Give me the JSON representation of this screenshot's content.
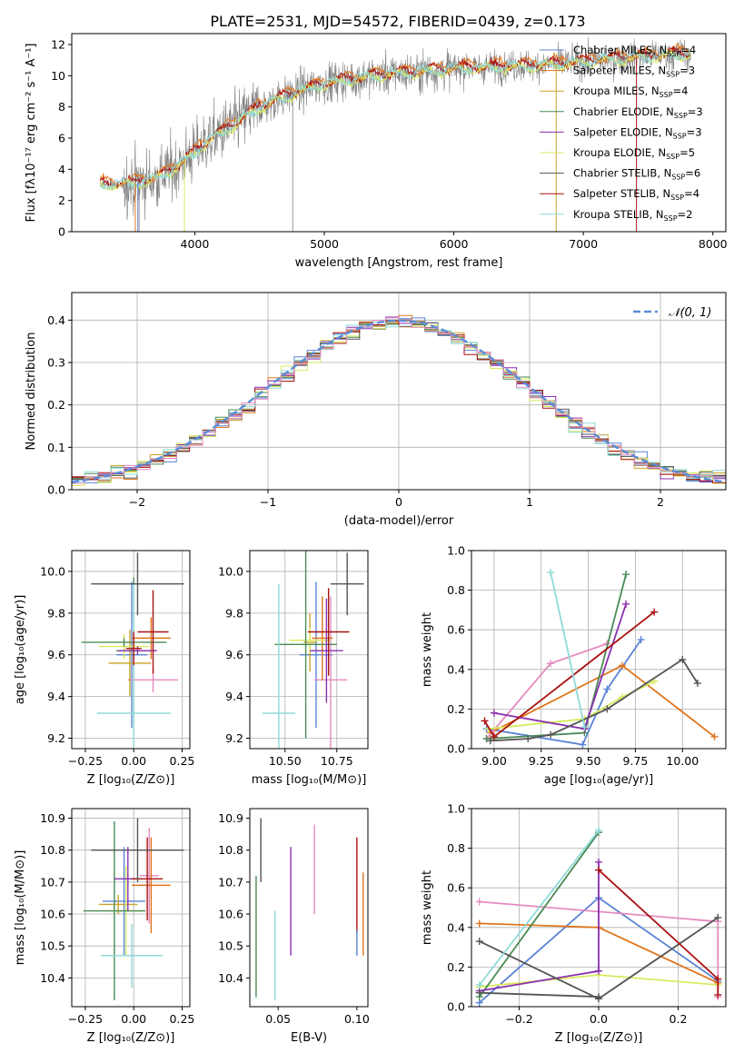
{
  "figure_title": "PLATE=2531, MJD=54572, FIBERID=0439, z=0.173",
  "colors": {
    "chabrier_miles": "#5b84d6",
    "salpeter_miles": "#e0751c",
    "kroupa_miles": "#c9a227",
    "chabrier_elodie": "#4a8a55",
    "salpeter_elodie": "#8b2fb0",
    "kroupa_elodie": "#d9ea5f",
    "chabrier_stelib": "#555555",
    "salpeter_stelib": "#aa1111",
    "kroupa_stelib": "#8fdad8",
    "pink": "#e58abf",
    "gray_data": "#808080",
    "normal_curve": "#5b8cd6"
  },
  "chart_data": [
    {
      "type": "line",
      "id": "spectrum",
      "xlabel": "wavelength [Angstrom, rest frame]",
      "ylabel": "Flux [fλ10⁻¹⁷ erg cm⁻² s⁻¹ A⁻¹]",
      "xlim": [
        3050,
        8100
      ],
      "ylim": [
        0,
        12.7
      ],
      "xticks": [
        4000,
        5000,
        6000,
        7000,
        8000
      ],
      "yticks": [
        0,
        2,
        4,
        6,
        8,
        10,
        12
      ],
      "grid": false,
      "continuum_points": [
        [
          3270,
          3.0
        ],
        [
          3500,
          3.1
        ],
        [
          3700,
          3.4
        ],
        [
          3900,
          4.4
        ],
        [
          4100,
          5.8
        ],
        [
          4300,
          6.9
        ],
        [
          4500,
          8.0
        ],
        [
          4800,
          9.0
        ],
        [
          5000,
          9.5
        ],
        [
          5200,
          9.8
        ],
        [
          5500,
          10.1
        ],
        [
          5800,
          10.3
        ],
        [
          6100,
          10.5
        ],
        [
          6400,
          10.6
        ],
        [
          6700,
          10.7
        ],
        [
          7000,
          10.9
        ],
        [
          7400,
          11.2
        ],
        [
          7800,
          11.4
        ]
      ],
      "legend_location": "upper right",
      "legend": [
        {
          "label": "Chabrier MILES, N_SSP=4",
          "color": "chabrier_miles"
        },
        {
          "label": "Salpeter MILES, N_SSP=3",
          "color": "salpeter_miles"
        },
        {
          "label": "Kroupa MILES, N_SSP=4",
          "color": "kroupa_miles"
        },
        {
          "label": "Chabrier ELODIE, N_SSP=3",
          "color": "chabrier_elodie"
        },
        {
          "label": "Salpeter ELODIE, N_SSP=3",
          "color": "salpeter_elodie"
        },
        {
          "label": "Kroupa ELODIE, N_SSP=5",
          "color": "kroupa_elodie"
        },
        {
          "label": "Chabrier STELIB, N_SSP=6",
          "color": "chabrier_stelib"
        },
        {
          "label": "Salpeter STELIB, N_SSP=4",
          "color": "salpeter_stelib"
        },
        {
          "label": "Kroupa STELIB, N_SSP=2",
          "color": "kroupa_stelib"
        }
      ],
      "legend_text": [
        {
          "pre": "Chabrier MILES, N",
          "sub": "SSP",
          "post": "=4"
        },
        {
          "pre": "Salpeter MILES, N",
          "sub": "SSP",
          "post": "=3"
        },
        {
          "pre": "Kroupa MILES, N",
          "sub": "SSP",
          "post": "=4"
        },
        {
          "pre": "Chabrier ELODIE, N",
          "sub": "SSP",
          "post": "=3"
        },
        {
          "pre": "Salpeter ELODIE, N",
          "sub": "SSP",
          "post": "=3"
        },
        {
          "pre": "Kroupa ELODIE, N",
          "sub": "SSP",
          "post": "=5"
        },
        {
          "pre": "Chabrier STELIB, N",
          "sub": "SSP",
          "post": "=6"
        },
        {
          "pre": "Salpeter STELIB, N",
          "sub": "SSP",
          "post": "=4"
        },
        {
          "pre": "Kroupa STELIB, N",
          "sub": "SSP",
          "post": "=2"
        }
      ]
    },
    {
      "type": "bar",
      "id": "residuals",
      "xlabel": "(data-model)/error",
      "ylabel": "Normed distribution",
      "xlim": [
        -2.5,
        2.5
      ],
      "ylim": [
        0,
        0.465
      ],
      "xticks": [
        -2,
        -1,
        0,
        1,
        2
      ],
      "yticks": [
        0.0,
        0.1,
        0.2,
        0.3,
        0.4
      ],
      "grid": true,
      "bin_width": 0.1,
      "legend": [
        {
          "label": "𝒩(0, 1)",
          "color": "normal_curve"
        }
      ],
      "legend_location": "upper right"
    },
    {
      "type": "scatter",
      "id": "age_vs_Z",
      "xlabel": "Z [log₁₀(Z/Z⊙)]",
      "ylabel": "age  [log₁₀(age/yr)]",
      "xlim": [
        -0.32,
        0.29
      ],
      "ylim": [
        9.15,
        10.1
      ],
      "xticks": [
        -0.25,
        0.0,
        0.25
      ],
      "yticks": [
        9.2,
        9.4,
        9.6,
        9.8,
        10.0
      ],
      "grid": true,
      "points": [
        {
          "x": -0.01,
          "y": 9.6,
          "xerr": 0.08,
          "yerr": 0.35,
          "color": "chabrier_miles"
        },
        {
          "x": 0.1,
          "y": 9.48,
          "xerr": 0.13,
          "yerr": 0.06,
          "color": "pink"
        },
        {
          "x": 0.09,
          "y": 9.68,
          "xerr": 0.1,
          "yerr": 0.1,
          "color": "salpeter_miles"
        },
        {
          "x": -0.02,
          "y": 9.56,
          "xerr": 0.11,
          "yerr": 0.16,
          "color": "kroupa_miles"
        },
        {
          "x": -0.05,
          "y": 9.64,
          "xerr": 0.13,
          "yerr": 0.06,
          "color": "kroupa_elodie"
        },
        {
          "x": -0.05,
          "y": 9.66,
          "xerr": 0.22,
          "yerr": 0.02,
          "color": "chabrier_elodie"
        },
        {
          "x": 0.0,
          "y": 9.62,
          "xerr": 0.09,
          "yerr": 0.35,
          "color": "chabrier_elodie"
        },
        {
          "x": 0.02,
          "y": 9.62,
          "xerr": 0.1,
          "yerr": 0.02,
          "color": "salpeter_elodie"
        },
        {
          "x": 0.0,
          "y": 9.32,
          "xerr": 0.19,
          "yerr": 0.62,
          "color": "kroupa_stelib"
        },
        {
          "x": 0.1,
          "y": 9.71,
          "xerr": 0.08,
          "yerr": 0.2,
          "color": "salpeter_stelib"
        },
        {
          "x": 0.02,
          "y": 9.94,
          "xerr": 0.24,
          "yerr": 0.15,
          "color": "chabrier_stelib"
        },
        {
          "x": 0.0,
          "y": 9.63,
          "xerr": 0.04,
          "yerr": 0.08,
          "color": "salpeter_stelib"
        }
      ]
    },
    {
      "type": "scatter",
      "id": "age_vs_mass",
      "xlabel": "mass [log₁₀(M/M⊙)]",
      "ylabel": "",
      "xlim": [
        10.33,
        10.9
      ],
      "ylim": [
        9.15,
        10.1
      ],
      "xticks": [
        10.5,
        10.75
      ],
      "yticks": [
        9.2,
        9.4,
        9.6,
        9.8,
        10.0
      ],
      "grid": true,
      "points": [
        {
          "x": 10.65,
          "y": 9.6,
          "xerr": 0.08,
          "yerr": 0.35,
          "color": "chabrier_miles"
        },
        {
          "x": 10.72,
          "y": 9.48,
          "xerr": 0.08,
          "yerr": 0.4,
          "color": "pink"
        },
        {
          "x": 10.68,
          "y": 9.68,
          "xerr": 0.05,
          "yerr": 0.2,
          "color": "salpeter_miles"
        },
        {
          "x": 10.62,
          "y": 9.66,
          "xerr": 0.03,
          "yerr": 0.14,
          "color": "kroupa_miles"
        },
        {
          "x": 10.62,
          "y": 9.67,
          "xerr": 0.1,
          "yerr": 0.06,
          "color": "kroupa_elodie"
        },
        {
          "x": 10.6,
          "y": 9.65,
          "xerr": 0.15,
          "yerr": 0.45,
          "color": "chabrier_elodie"
        },
        {
          "x": 10.7,
          "y": 9.62,
          "xerr": 0.08,
          "yerr": 0.25,
          "color": "salpeter_elodie"
        },
        {
          "x": 10.47,
          "y": 9.32,
          "xerr": 0.08,
          "yerr": 0.62,
          "color": "kroupa_stelib"
        },
        {
          "x": 10.71,
          "y": 9.71,
          "xerr": 0.1,
          "yerr": 0.21,
          "color": "salpeter_stelib"
        },
        {
          "x": 10.8,
          "y": 9.94,
          "xerr": 0.08,
          "yerr": 0.15,
          "color": "chabrier_stelib"
        }
      ]
    },
    {
      "type": "line",
      "id": "mass_weight_vs_age",
      "xlabel": "age  [log₁₀(age/yr)]",
      "ylabel": "mass weight",
      "xlim": [
        8.88,
        10.23
      ],
      "ylim": [
        0.0,
        1.0
      ],
      "xticks": [
        9.0,
        9.25,
        9.5,
        9.75,
        10.0
      ],
      "yticks": [
        0.0,
        0.2,
        0.4,
        0.6,
        0.8,
        1.0
      ],
      "grid": true,
      "series": [
        {
          "color": "chabrier_miles",
          "x": [
            8.96,
            9.47,
            9.6,
            9.78
          ],
          "y": [
            0.1,
            0.02,
            0.3,
            0.55
          ]
        },
        {
          "color": "salpeter_miles",
          "x": [
            8.98,
            9.68,
            10.17
          ],
          "y": [
            0.08,
            0.42,
            0.06
          ]
        },
        {
          "color": "pink",
          "x": [
            8.96,
            9.3,
            9.6
          ],
          "y": [
            0.05,
            0.43,
            0.53
          ]
        },
        {
          "color": "kroupa_elodie",
          "x": [
            8.97,
            9.48,
            9.68,
            9.85
          ],
          "y": [
            0.1,
            0.15,
            0.26,
            0.34
          ]
        },
        {
          "color": "chabrier_elodie",
          "x": [
            8.96,
            9.48,
            9.7
          ],
          "y": [
            0.05,
            0.08,
            0.88
          ]
        },
        {
          "color": "salpeter_elodie",
          "x": [
            9.0,
            9.48,
            9.7
          ],
          "y": [
            0.18,
            0.1,
            0.73
          ]
        },
        {
          "color": "chabrier_stelib",
          "x": [
            8.98,
            9.18,
            9.3,
            9.6,
            10.0,
            10.08
          ],
          "y": [
            0.04,
            0.05,
            0.07,
            0.2,
            0.45,
            0.33
          ]
        },
        {
          "color": "salpeter_stelib",
          "x": [
            8.95,
            9.0,
            9.85
          ],
          "y": [
            0.14,
            0.06,
            0.69
          ]
        },
        {
          "color": "kroupa_stelib",
          "x": [
            9.3,
            9.48
          ],
          "y": [
            0.89,
            0.11
          ]
        }
      ]
    },
    {
      "type": "scatter",
      "id": "mass_vs_Z",
      "xlabel": "Z [log₁₀(Z/Z⊙)]",
      "ylabel": "mass [log₁₀(M/M⊙)]",
      "xlim": [
        -0.32,
        0.29
      ],
      "ylim": [
        10.31,
        10.93
      ],
      "xticks": [
        -0.25,
        0.0,
        0.25
      ],
      "yticks": [
        10.4,
        10.5,
        10.6,
        10.7,
        10.8,
        10.9
      ],
      "grid": true,
      "points": [
        {
          "x": -0.05,
          "y": 10.64,
          "xerr": 0.11,
          "yerr": 0.17,
          "color": "chabrier_miles"
        },
        {
          "x": 0.08,
          "y": 10.72,
          "xerr": 0.05,
          "yerr": 0.15,
          "color": "pink"
        },
        {
          "x": 0.09,
          "y": 10.69,
          "xerr": 0.1,
          "yerr": 0.15,
          "color": "salpeter_miles"
        },
        {
          "x": -0.08,
          "y": 10.63,
          "xerr": 0.1,
          "yerr": 0.03,
          "color": "kroupa_miles"
        },
        {
          "x": -0.04,
          "y": 10.61,
          "xerr": 0.1,
          "yerr": 0.14,
          "color": "kroupa_elodie"
        },
        {
          "x": -0.1,
          "y": 10.61,
          "xerr": 0.16,
          "yerr": 0.28,
          "color": "chabrier_elodie"
        },
        {
          "x": -0.03,
          "y": 10.71,
          "xerr": 0.07,
          "yerr": 0.1,
          "color": "salpeter_elodie"
        },
        {
          "x": -0.01,
          "y": 10.47,
          "xerr": 0.16,
          "yerr": 0.1,
          "color": "kroupa_stelib"
        },
        {
          "x": 0.07,
          "y": 10.71,
          "xerr": 0.08,
          "yerr": 0.13,
          "color": "salpeter_stelib"
        },
        {
          "x": 0.02,
          "y": 10.8,
          "xerr": 0.24,
          "yerr": 0.1,
          "color": "chabrier_stelib"
        }
      ]
    },
    {
      "type": "scatter",
      "id": "mass_vs_ebv",
      "xlabel": "E(B-V)",
      "ylabel": "",
      "xlim": [
        0.032,
        0.107
      ],
      "ylim": [
        10.31,
        10.93
      ],
      "xticks": [
        0.05,
        0.1
      ],
      "yticks": [
        10.4,
        10.5,
        10.6,
        10.7,
        10.8,
        10.9
      ],
      "grid": false,
      "points": [
        {
          "x": 0.036,
          "y": 10.53,
          "yerr": 0.19,
          "color": "chabrier_elodie"
        },
        {
          "x": 0.039,
          "y": 10.8,
          "yerr": 0.1,
          "color": "chabrier_stelib"
        },
        {
          "x": 0.048,
          "y": 10.47,
          "yerr": 0.14,
          "color": "kroupa_stelib"
        },
        {
          "x": 0.058,
          "y": 10.64,
          "yerr": 0.17,
          "color": "salpeter_elodie"
        },
        {
          "x": 0.073,
          "y": 10.74,
          "yerr": 0.14,
          "color": "pink"
        },
        {
          "x": 0.1,
          "y": 10.69,
          "yerr": 0.15,
          "color": "salpeter_stelib"
        },
        {
          "x": 0.1,
          "y": 10.51,
          "yerr": 0.04,
          "color": "chabrier_miles"
        },
        {
          "x": 0.104,
          "y": 10.6,
          "yerr": 0.13,
          "color": "salpeter_miles"
        }
      ]
    },
    {
      "type": "line",
      "id": "mass_weight_vs_Z",
      "xlabel": "Z [log₁₀(Z/Z⊙)]",
      "ylabel": "mass weight",
      "xlim": [
        -0.32,
        0.32
      ],
      "ylim": [
        0.0,
        1.0
      ],
      "xticks": [
        -0.2,
        0.0,
        0.2
      ],
      "yticks": [
        0.0,
        0.2,
        0.4,
        0.6,
        0.8,
        1.0
      ],
      "grid": true,
      "series": [
        {
          "color": "chabrier_miles",
          "x": [
            -0.3,
            0.0,
            0.3
          ],
          "y": [
            0.02,
            0.55,
            0.13
          ]
        },
        {
          "color": "salpeter_miles",
          "x": [
            -0.3,
            0.0,
            0.3
          ],
          "y": [
            0.42,
            0.4,
            0.12
          ]
        },
        {
          "color": "pink",
          "x": [
            -0.3,
            0.3,
            0.3
          ],
          "y": [
            0.53,
            0.43,
            0.05
          ]
        },
        {
          "color": "kroupa_elodie",
          "x": [
            -0.3,
            0.0,
            0.3
          ],
          "y": [
            0.1,
            0.16,
            0.11
          ]
        },
        {
          "color": "chabrier_elodie",
          "x": [
            -0.3,
            0.0
          ],
          "y": [
            0.05,
            0.88
          ]
        },
        {
          "color": "salpeter_elodie",
          "x": [
            -0.3,
            0.0,
            0.0
          ],
          "y": [
            0.08,
            0.18,
            0.73
          ]
        },
        {
          "color": "chabrier_stelib",
          "x": [
            -0.3,
            0.0,
            0.3
          ],
          "y": [
            0.33,
            0.04,
            0.45
          ]
        },
        {
          "color": "chabrier_stelib",
          "x": [
            -0.3,
            0.0
          ],
          "y": [
            0.07,
            0.05
          ]
        },
        {
          "color": "salpeter_stelib",
          "x": [
            0.0,
            0.3,
            0.3
          ],
          "y": [
            0.69,
            0.14,
            0.06
          ]
        },
        {
          "color": "kroupa_stelib",
          "x": [
            -0.3,
            0.0
          ],
          "y": [
            0.11,
            0.89
          ]
        }
      ]
    }
  ]
}
